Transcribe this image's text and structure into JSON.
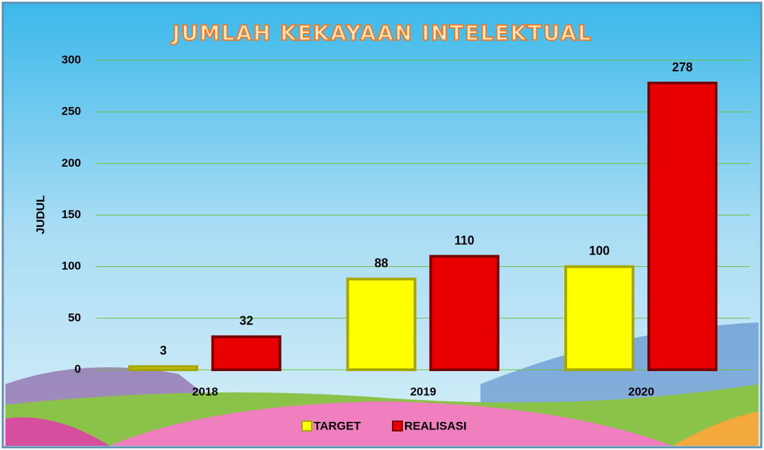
{
  "chart_data": {
    "type": "bar",
    "title": "JUMLAH KEKAYAAN INTELEKTUAL",
    "y_label": "JUDUL",
    "categories": [
      "2018",
      "2019",
      "2020"
    ],
    "series": [
      {
        "name": "TARGET",
        "color": "#ffff00",
        "values": [
          3,
          88,
          100
        ]
      },
      {
        "name": "REALISASI",
        "color": "#e80000",
        "values": [
          32,
          110,
          278
        ]
      }
    ],
    "ylim": [
      0,
      300
    ],
    "yticks": [
      0,
      50,
      100,
      150,
      200,
      250,
      300
    ],
    "grid": true,
    "legend": "bottom"
  }
}
